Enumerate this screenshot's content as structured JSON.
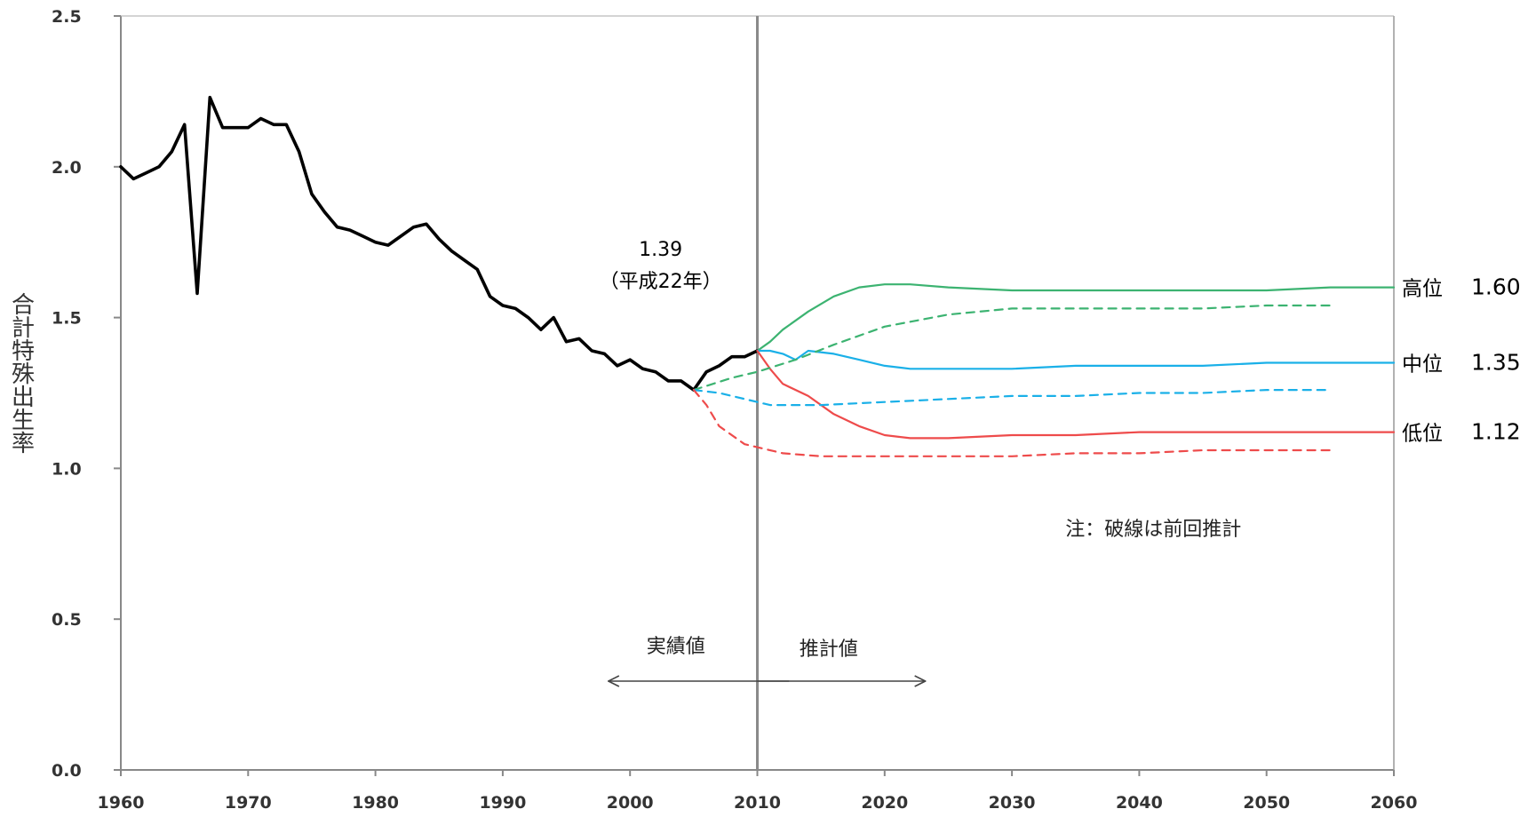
{
  "chart_data": {
    "type": "line",
    "x_range": [
      1960,
      2060
    ],
    "ylim": [
      0,
      2.5
    ],
    "x_ticks": [
      "1960",
      "1970",
      "1980",
      "1990",
      "2000",
      "2010",
      "2020",
      "2030",
      "2040",
      "2050",
      "2060"
    ],
    "y_ticks": [
      "0.0",
      "0.5",
      "1.0",
      "1.5",
      "2.0",
      "2.5"
    ],
    "ylabel": "合計特殊出生率",
    "grid": false,
    "series": [
      {
        "kind": "actual",
        "style": "solid",
        "color": "#000000",
        "x": [
          1960,
          1961,
          1962,
          1963,
          1964,
          1965,
          1966,
          1967,
          1968,
          1969,
          1970,
          1971,
          1972,
          1973,
          1974,
          1975,
          1976,
          1977,
          1978,
          1979,
          1980,
          1981,
          1982,
          1983,
          1984,
          1985,
          1986,
          1987,
          1988,
          1989,
          1990,
          1991,
          1992,
          1993,
          1994,
          1995,
          1996,
          1997,
          1998,
          1999,
          2000,
          2001,
          2002,
          2003,
          2004,
          2005,
          2006,
          2007,
          2008,
          2009,
          2010
        ],
        "values": [
          2.0,
          1.96,
          1.98,
          2.0,
          2.05,
          2.14,
          1.58,
          2.23,
          2.13,
          2.13,
          2.13,
          2.16,
          2.14,
          2.14,
          2.05,
          1.91,
          1.85,
          1.8,
          1.79,
          1.77,
          1.75,
          1.74,
          1.77,
          1.8,
          1.81,
          1.76,
          1.72,
          1.69,
          1.66,
          1.57,
          1.54,
          1.53,
          1.5,
          1.46,
          1.5,
          1.42,
          1.43,
          1.39,
          1.38,
          1.34,
          1.36,
          1.33,
          1.32,
          1.29,
          1.29,
          1.26,
          1.32,
          1.34,
          1.37,
          1.37,
          1.39
        ]
      },
      {
        "name": "高位",
        "style": "solid",
        "color": "#3cb371",
        "x": [
          2010,
          2011,
          2012,
          2014,
          2016,
          2018,
          2020,
          2022,
          2025,
          2030,
          2035,
          2040,
          2045,
          2050,
          2055,
          2060
        ],
        "values": [
          1.39,
          1.42,
          1.46,
          1.52,
          1.57,
          1.6,
          1.61,
          1.61,
          1.6,
          1.59,
          1.59,
          1.59,
          1.59,
          1.59,
          1.6,
          1.6
        ]
      },
      {
        "name": "中位",
        "style": "solid",
        "color": "#1ab0e8",
        "x": [
          2010,
          2011,
          2012,
          2013,
          2014,
          2016,
          2018,
          2020,
          2022,
          2025,
          2030,
          2035,
          2040,
          2045,
          2050,
          2055,
          2060
        ],
        "values": [
          1.39,
          1.39,
          1.38,
          1.36,
          1.39,
          1.38,
          1.36,
          1.34,
          1.33,
          1.33,
          1.33,
          1.34,
          1.34,
          1.34,
          1.35,
          1.35,
          1.35
        ]
      },
      {
        "name": "低位",
        "style": "solid",
        "color": "#ee4b4b",
        "x": [
          2010,
          2011,
          2012,
          2014,
          2016,
          2018,
          2020,
          2022,
          2025,
          2030,
          2035,
          2040,
          2045,
          2050,
          2055,
          2060
        ],
        "values": [
          1.39,
          1.33,
          1.28,
          1.24,
          1.18,
          1.14,
          1.11,
          1.1,
          1.1,
          1.11,
          1.11,
          1.12,
          1.12,
          1.12,
          1.12,
          1.12
        ]
      },
      {
        "name": "高位",
        "style": "dashed",
        "color": "#3cb371",
        "x": [
          2005,
          2008,
          2010,
          2013,
          2016,
          2020,
          2025,
          2030,
          2035,
          2040,
          2045,
          2050,
          2055
        ],
        "values": [
          1.26,
          1.3,
          1.32,
          1.36,
          1.41,
          1.47,
          1.51,
          1.53,
          1.53,
          1.53,
          1.53,
          1.54,
          1.54
        ]
      },
      {
        "name": "中位",
        "style": "dashed",
        "color": "#1ab0e8",
        "x": [
          2005,
          2007,
          2009,
          2011,
          2015,
          2020,
          2025,
          2030,
          2035,
          2040,
          2045,
          2050,
          2055
        ],
        "values": [
          1.26,
          1.25,
          1.23,
          1.21,
          1.21,
          1.22,
          1.23,
          1.24,
          1.24,
          1.25,
          1.25,
          1.26,
          1.26
        ]
      },
      {
        "name": "低位",
        "style": "dashed",
        "color": "#ee4b4b",
        "x": [
          2005,
          2006,
          2007,
          2009,
          2012,
          2015,
          2020,
          2025,
          2030,
          2035,
          2040,
          2045,
          2050,
          2055
        ],
        "values": [
          1.26,
          1.21,
          1.14,
          1.08,
          1.05,
          1.04,
          1.04,
          1.04,
          1.04,
          1.05,
          1.05,
          1.06,
          1.06,
          1.06
        ]
      }
    ],
    "divider_year": 2010,
    "annotations": {
      "current_value": "1.39",
      "current_era": "（平成22年）",
      "note": "注：破線は前回推計",
      "actual_label": "実績値",
      "projection_label": "推計値"
    },
    "end_labels": [
      {
        "name": "高位",
        "value": "1.60",
        "y": 1.6
      },
      {
        "name": "中位",
        "value": "1.35",
        "y": 1.35
      },
      {
        "name": "低位",
        "value": "1.12",
        "y": 1.12
      }
    ]
  }
}
